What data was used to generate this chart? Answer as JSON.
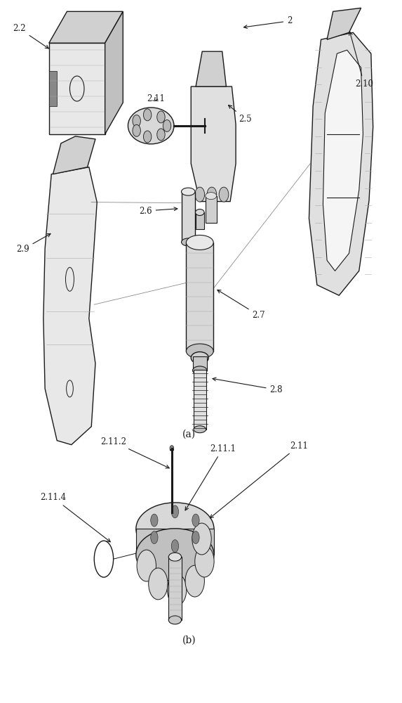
{
  "title": "",
  "background_color": "#ffffff",
  "line_color": "#1a1a1a",
  "label_color": "#000000",
  "fig_width": 5.73,
  "fig_height": 10.0
}
